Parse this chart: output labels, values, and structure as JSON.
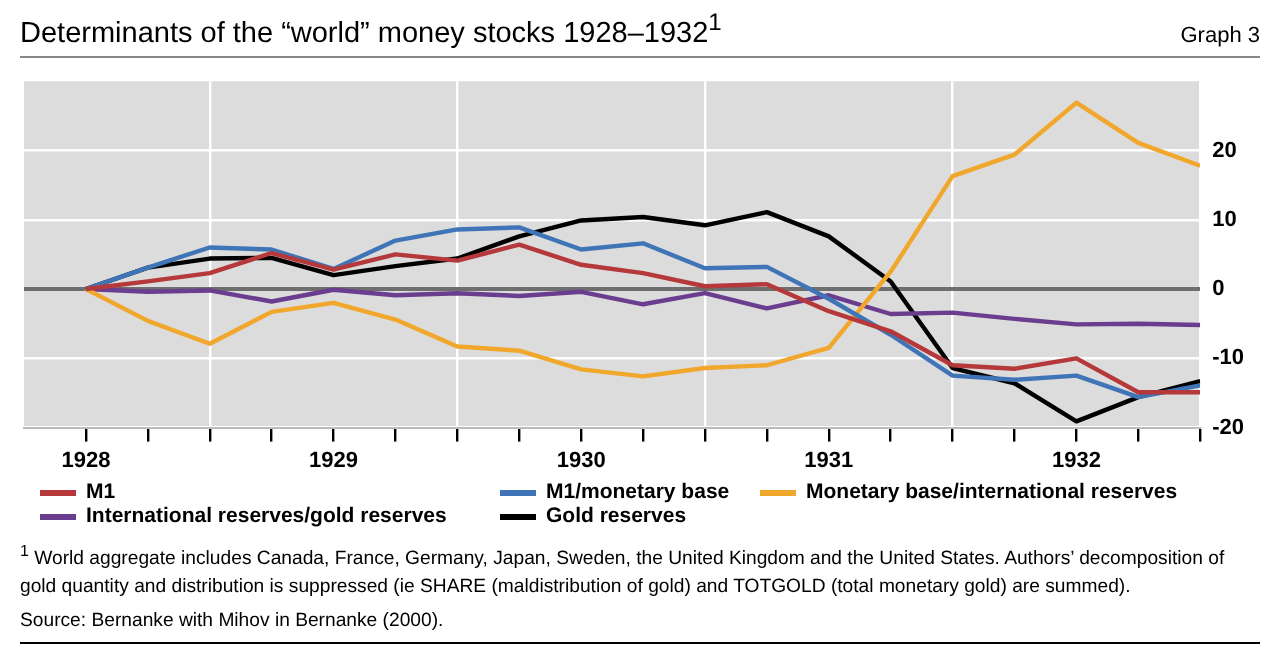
{
  "chart_data": {
    "type": "line",
    "title": "Determinants of the “world” money stocks 1928–1932$^{1}$",
    "x": [
      1928,
      1928.25,
      1928.5,
      1928.75,
      1929,
      1929.25,
      1929.5,
      1929.75,
      1930,
      1930.25,
      1930.5,
      1930.75,
      1931,
      1931.25,
      1931.5,
      1931.75,
      1932,
      1932.25,
      1932.5
    ],
    "series": [
      {
        "name": "M1",
        "color": "#b5393a",
        "values": [
          0,
          1.1,
          2.3,
          5.2,
          2.8,
          5.0,
          4.1,
          6.4,
          3.5,
          2.3,
          0.4,
          0.7,
          -3.2,
          -6.1,
          -11.0,
          -11.5,
          -10.0,
          -14.9,
          -14.9
        ]
      },
      {
        "name": "M1/monetary base",
        "color": "#3f75b7",
        "values": [
          0,
          3.1,
          6.0,
          5.7,
          2.9,
          7.0,
          8.6,
          8.9,
          5.7,
          6.6,
          3.0,
          3.2,
          -1.4,
          -6.6,
          -12.5,
          -13.1,
          -12.5,
          -15.6,
          -13.9
        ]
      },
      {
        "name": "Monetary base/international reserves",
        "color": "#f0a72b",
        "values": [
          0,
          -4.6,
          -7.9,
          -3.3,
          -2.0,
          -4.4,
          -8.3,
          -8.9,
          -11.6,
          -12.6,
          -11.4,
          -11.0,
          -8.5,
          2.5,
          16.3,
          19.4,
          26.9,
          21.1,
          17.8
        ]
      },
      {
        "name": "International reserves/gold reserves",
        "color": "#6a3d8f",
        "values": [
          0,
          -0.4,
          -0.2,
          -1.8,
          -0.1,
          -0.9,
          -0.6,
          -1.0,
          -0.4,
          -2.2,
          -0.6,
          -2.8,
          -0.9,
          -3.6,
          -3.4,
          -4.3,
          -5.1,
          -5.0,
          -5.2
        ]
      },
      {
        "name": "Gold reserves",
        "color": "#000000",
        "values": [
          0,
          3.1,
          4.4,
          4.5,
          2.0,
          3.3,
          4.4,
          7.6,
          9.9,
          10.4,
          9.2,
          11.1,
          7.6,
          1.1,
          -11.4,
          -13.6,
          -19.1,
          -15.6,
          -13.3
        ]
      }
    ],
    "xlim": [
      1927.75,
      1932.5
    ],
    "xticks": [
      1928,
      {
        "value": 1928.25,
        "label": null
      },
      {
        "value": 1928.5,
        "label": null
      },
      {
        "value": 1928.75,
        "label": null
      },
      1929,
      {
        "value": 1929.25,
        "label": null
      },
      {
        "value": 1929.5,
        "label": null
      },
      {
        "value": 1929.75,
        "label": null
      },
      1930,
      {
        "value": 1930.25,
        "label": null
      },
      {
        "value": 1930.5,
        "label": null
      },
      {
        "value": 1930.75,
        "label": null
      },
      1931,
      {
        "value": 1931.25,
        "label": null
      },
      {
        "value": 1931.5,
        "label": null
      },
      {
        "value": 1931.75,
        "label": null
      },
      1932,
      {
        "value": 1932.25,
        "label": null
      },
      {
        "value": 1932.5,
        "label": null
      }
    ],
    "ylim": [
      -20,
      30
    ],
    "yticks": [
      -20,
      -10,
      0,
      10,
      20
    ],
    "grid": true,
    "legend": "bottom",
    "marker": "none",
    "line_style": "solid",
    "annotations": [
      "Graph 3",
      "$^{1}$ World aggregate includes Canada, France, Germany, Japan, Sweden, the United Kingdom and the United States. Authors’ decomposition of gold quantity and distribution is suppressed (ie SHARE (maldistribution of gold) and TOTGOLD (total monetary gold) are summed).",
      "Source: Bernanke with Mihov in Bernanke (2000)."
    ]
  }
}
